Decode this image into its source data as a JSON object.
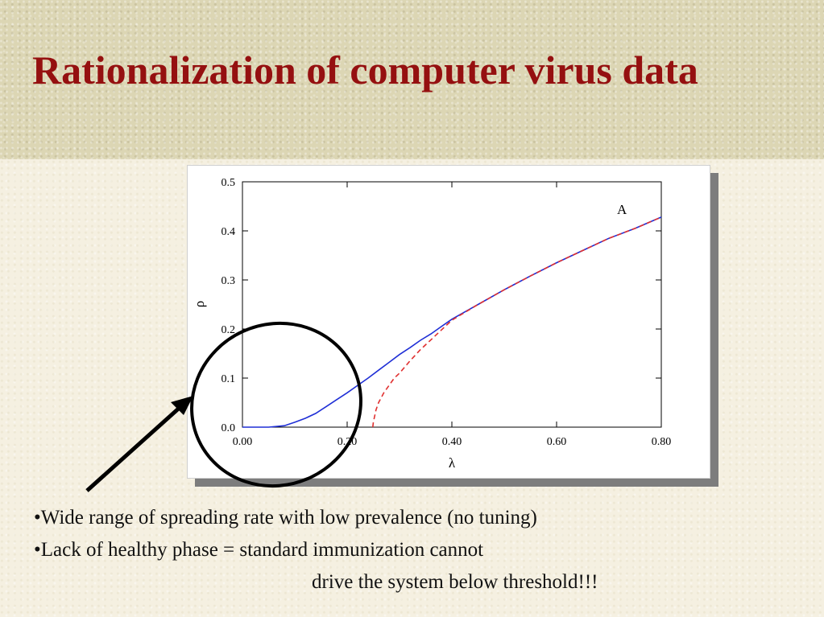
{
  "slide": {
    "title": "Rationalization of computer virus data",
    "bullets": [
      "•Wide range of spreading rate with low prevalence (no tuning)",
      "•Lack of healthy phase = standard immunization cannot",
      "drive the system below threshold!!!"
    ],
    "colors": {
      "title": "#951010",
      "banner": "#dcd6b4",
      "background": "#f5f0e1",
      "annotation": "#000000"
    }
  },
  "chart_data": {
    "type": "line",
    "xlabel": "λ",
    "ylabel": "ρ",
    "annotation": "A",
    "xlim": [
      0,
      0.8
    ],
    "ylim": [
      0,
      0.5
    ],
    "x_ticks": [
      "0.00",
      "0.20",
      "0.40",
      "0.60",
      "0.80"
    ],
    "y_ticks": [
      "0.0",
      "0.1",
      "0.2",
      "0.3",
      "0.4",
      "0.5"
    ],
    "x_tick_values": [
      0,
      0.2,
      0.4,
      0.6,
      0.8
    ],
    "y_tick_values": [
      0,
      0.1,
      0.2,
      0.3,
      0.4,
      0.5
    ],
    "grid": false,
    "series": [
      {
        "style": "solid",
        "color": "#1f2fd6",
        "x": [
          0.0,
          0.05,
          0.08,
          0.1,
          0.12,
          0.14,
          0.16,
          0.18,
          0.2,
          0.22,
          0.24,
          0.26,
          0.28,
          0.3,
          0.32,
          0.34,
          0.36,
          0.38,
          0.4,
          0.45,
          0.5,
          0.55,
          0.6,
          0.65,
          0.7,
          0.75,
          0.8
        ],
        "y": [
          0.0,
          0.0,
          0.003,
          0.01,
          0.018,
          0.028,
          0.042,
          0.056,
          0.07,
          0.085,
          0.1,
          0.116,
          0.132,
          0.148,
          0.162,
          0.177,
          0.19,
          0.205,
          0.22,
          0.25,
          0.28,
          0.308,
          0.335,
          0.36,
          0.385,
          0.405,
          0.428
        ]
      },
      {
        "style": "dashed",
        "color": "#e03030",
        "x": [
          0.249,
          0.25,
          0.255,
          0.26,
          0.27,
          0.28,
          0.29,
          0.3,
          0.32,
          0.34,
          0.36,
          0.38,
          0.4,
          0.45,
          0.5,
          0.55,
          0.6,
          0.65,
          0.7,
          0.75,
          0.8
        ],
        "y": [
          0.0,
          0.01,
          0.035,
          0.05,
          0.07,
          0.085,
          0.1,
          0.11,
          0.135,
          0.158,
          0.178,
          0.198,
          0.218,
          0.25,
          0.28,
          0.308,
          0.335,
          0.36,
          0.385,
          0.405,
          0.428
        ]
      }
    ]
  }
}
